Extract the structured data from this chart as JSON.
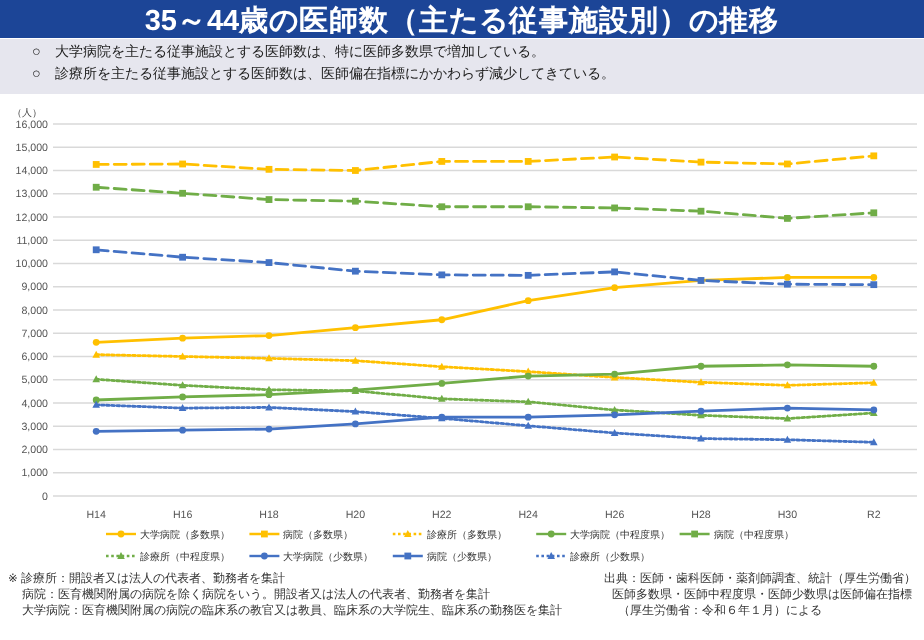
{
  "chart_data": {
    "type": "line",
    "title": "35～44歳の医師数（主たる従事施設別）の推移",
    "subtitle": "○　大学病院を主たる従事施設とする医師数は、特に医師多数県で増加している。\n○　診療所を主たる従事施設とする医師数は、医師偏在指標にかかわらず減少してきている。",
    "ylabel": "（人）",
    "categories": [
      "H14",
      "H16",
      "H18",
      "H20",
      "H22",
      "H24",
      "H26",
      "H28",
      "H30",
      "R2"
    ],
    "ylim": [
      0,
      16000
    ],
    "yticks": [
      {
        "value": 0,
        "label": "0"
      },
      {
        "value": 1000,
        "label": "1,000"
      },
      {
        "value": 2000,
        "label": "2,000"
      },
      {
        "value": 3000,
        "label": "3,000"
      },
      {
        "value": 4000,
        "label": "4,000"
      },
      {
        "value": 5000,
        "label": "5,000"
      },
      {
        "value": 6000,
        "label": "6,000"
      },
      {
        "value": 7000,
        "label": "7,000"
      },
      {
        "value": 8000,
        "label": "8,000"
      },
      {
        "value": 9000,
        "label": "9,000"
      },
      {
        "value": 10000,
        "label": "10,000"
      },
      {
        "value": 11000,
        "label": "11,000"
      },
      {
        "value": 12000,
        "label": "12,000"
      },
      {
        "value": 13000,
        "label": "13,000"
      },
      {
        "value": 14000,
        "label": "14,000"
      },
      {
        "value": 15000,
        "label": "15,000"
      },
      {
        "value": 16000,
        "label": "16,000"
      }
    ],
    "grid": "y",
    "legend": "bottom",
    "series": [
      {
        "name": "大学病院（多数県）",
        "color": "#ffc000",
        "line_style": "solid",
        "marker": "circle",
        "values": [
          6610,
          6790,
          6900,
          7240,
          7580,
          8400,
          8960,
          9270,
          9400,
          9400
        ]
      },
      {
        "name": "病院（多数県）",
        "color": "#ffc000",
        "line_style": "dashed",
        "marker": "square",
        "values": [
          14260,
          14280,
          14050,
          14000,
          14390,
          14390,
          14580,
          14360,
          14280,
          14630
        ]
      },
      {
        "name": "診療所（多数県）",
        "color": "#ffc000",
        "line_style": "dotted",
        "marker": "triangle",
        "values": [
          6080,
          6000,
          5920,
          5820,
          5560,
          5350,
          5100,
          4890,
          4760,
          4870
        ]
      },
      {
        "name": "大学病院（中程度県）",
        "color": "#70ad47",
        "line_style": "solid",
        "marker": "circle",
        "values": [
          4130,
          4260,
          4360,
          4550,
          4840,
          5160,
          5240,
          5580,
          5640,
          5580
        ]
      },
      {
        "name": "病院（中程度県）",
        "color": "#70ad47",
        "line_style": "dashed",
        "marker": "square",
        "values": [
          13280,
          13020,
          12750,
          12680,
          12440,
          12440,
          12390,
          12250,
          11940,
          12180
        ]
      },
      {
        "name": "診療所（中程度県）",
        "color": "#70ad47",
        "line_style": "dotted",
        "marker": "triangle",
        "values": [
          5020,
          4760,
          4570,
          4520,
          4180,
          4050,
          3700,
          3470,
          3330,
          3570
        ]
      },
      {
        "name": "大学病院（少数県）",
        "color": "#4472c4",
        "line_style": "solid",
        "marker": "circle",
        "values": [
          2780,
          2830,
          2880,
          3100,
          3390,
          3390,
          3490,
          3650,
          3780,
          3700
        ]
      },
      {
        "name": "病院（少数県）",
        "color": "#4472c4",
        "line_style": "dashed",
        "marker": "square",
        "values": [
          10590,
          10270,
          10040,
          9670,
          9510,
          9490,
          9640,
          9270,
          9110,
          9090
        ]
      },
      {
        "name": "診療所（少数県）",
        "color": "#4472c4",
        "line_style": "dotted",
        "marker": "triangle",
        "values": [
          3920,
          3780,
          3810,
          3630,
          3340,
          3020,
          2710,
          2470,
          2420,
          2310
        ]
      }
    ],
    "annotations": [
      "※ 診療所：開設者又は法人の代表者、勤務者を集計",
      "病院：医育機関附属の病院を除く病院をいう。開設者又は法人の代表者、勤務者を集計",
      "大学病院：医育機関附属の病院の臨床系の教官又は教員、臨床系の大学院生、臨床系の勤務医を集計",
      "出典：医師・歯科医師・薬剤師調査、統計（厚生労働省）",
      "医師多数県・医師中程度県・医師少数県は医師偏在指標",
      "（厚生労働省：令和６年１月）による"
    ]
  }
}
